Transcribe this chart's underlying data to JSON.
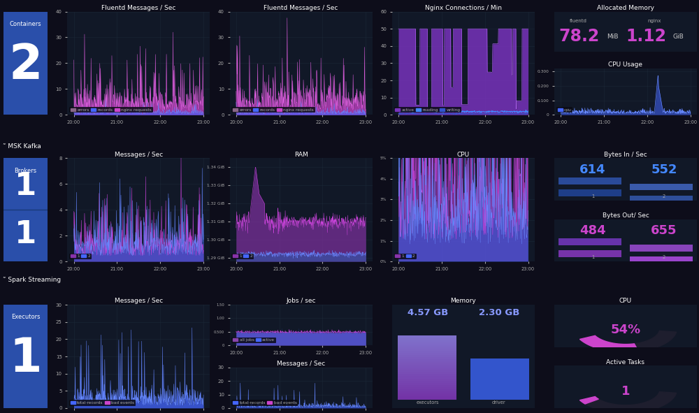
{
  "bg_color": "#0d0d1a",
  "panel_bg": "#111827",
  "text_color": "#ffffff",
  "grid_color": "#1e2a3a",
  "number_blue": "#2a4faa",
  "pink": "#cc44cc",
  "cyan": "#4488ff",
  "purple": "#8833aa",
  "blue": "#4466ff",
  "allocated_memory": {
    "fluentd_label": "fluentd",
    "fluentd_value": "78.2",
    "fluentd_unit": "MiB",
    "nginx_label": "nginx",
    "nginx_value": "1.12",
    "nginx_unit": "GiB"
  },
  "bytes_in": {
    "val1": "614",
    "val2": "552"
  },
  "bytes_out": {
    "val1": "484",
    "val2": "655"
  },
  "memory_spark": {
    "val1": "4.57 GB",
    "val2": "2.30 GB",
    "label1": "executors",
    "label2": "driver"
  },
  "cpu_spark": {
    "value": "54%"
  },
  "active_tasks": {
    "value": "1"
  }
}
